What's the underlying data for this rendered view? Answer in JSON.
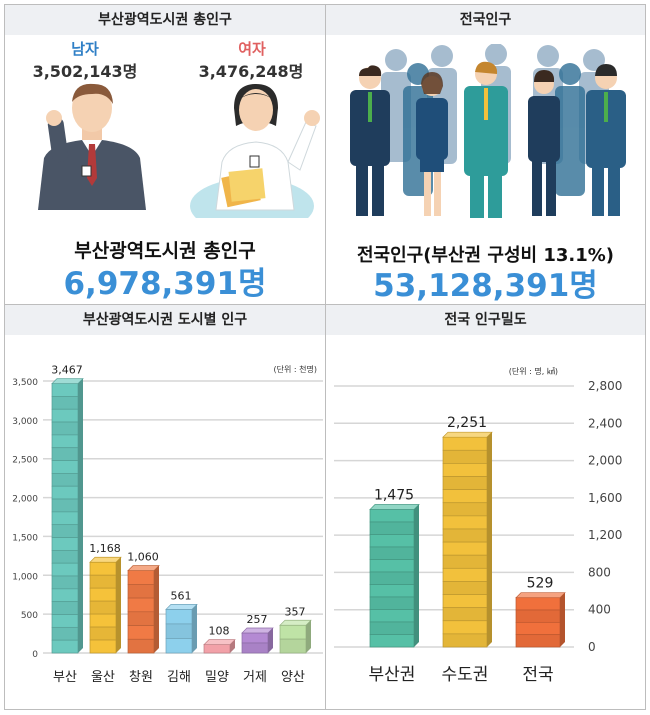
{
  "colors": {
    "accent_blue": "#3a8fd6",
    "female_red": "#e06060",
    "male_blue": "#2f7fc6"
  },
  "panel_population": {
    "header": "부산광역도시권 총인구",
    "male_label": "남자",
    "male_count": "3,502,143명",
    "female_label": "여자",
    "female_count": "3,476,248명",
    "total_title": "부산광역도시권 총인구",
    "total_value": "6,978,391명"
  },
  "panel_national": {
    "header": "전국인구",
    "total_title": "전국인구(부산권 구성비 13.1%)",
    "total_value": "53,128,391명"
  },
  "panel_city": {
    "header": "부산광역도시권 도시별 인구"
  },
  "panel_density": {
    "header": "전국 인구밀도"
  },
  "chart_data": [
    {
      "type": "bar",
      "unit": "(단위 : 천명)",
      "categories": [
        "부산",
        "울산",
        "창원",
        "김해",
        "밀양",
        "거제",
        "양산"
      ],
      "values": [
        3467,
        1168,
        1060,
        561,
        108,
        257,
        357
      ],
      "value_labels": [
        "3,467",
        "1,168",
        "1,060",
        "561",
        "108",
        "257",
        "357"
      ],
      "ylim": [
        0,
        3500
      ],
      "yticks": [
        "0",
        "500",
        "1,000",
        "1,500",
        "2,000",
        "2,500",
        "3,000",
        "3,500"
      ],
      "colors": [
        "#6cc9be",
        "#f5c23a",
        "#f07a45",
        "#8dd0ec",
        "#f2a1a8",
        "#b48ad3",
        "#bfe3a6"
      ]
    },
    {
      "type": "bar",
      "unit": "(단위 : 명, ㎢)",
      "categories": [
        "부산권",
        "수도권",
        "전국"
      ],
      "values": [
        1475,
        2251,
        529
      ],
      "value_labels": [
        "1,475",
        "2,251",
        "529"
      ],
      "ylim": [
        0,
        2800
      ],
      "yticks": [
        "0",
        "400",
        "800",
        "1,200",
        "1,600",
        "2,000",
        "2,400",
        "2,800"
      ],
      "colors": [
        "#56c0a6",
        "#f2c13c",
        "#f0703c"
      ]
    }
  ]
}
